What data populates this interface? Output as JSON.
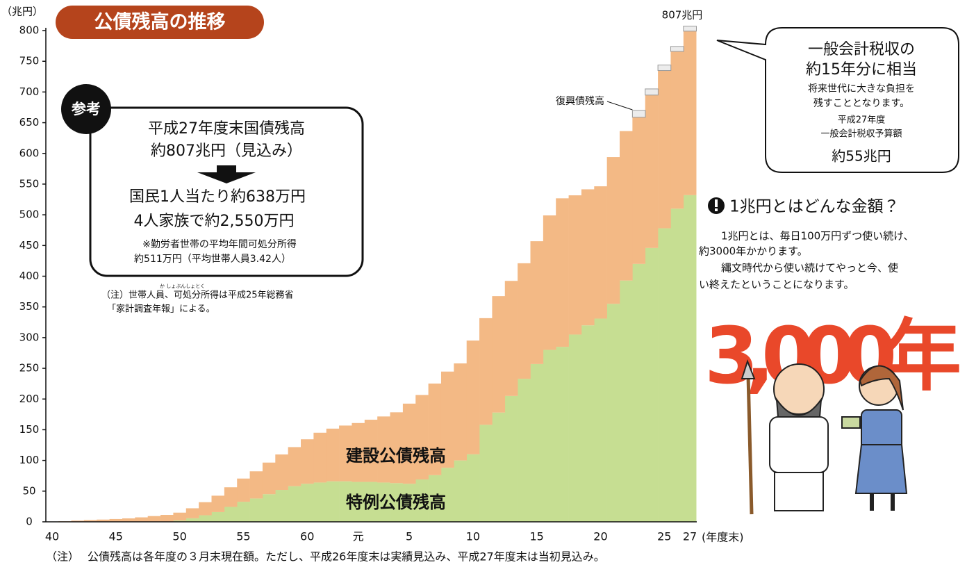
{
  "chart_data": {
    "type": "bar",
    "stacked": true,
    "title": "公債残高の推移",
    "ylabel": "（兆円）",
    "xlabel": "(年度末)",
    "categories": [
      "40",
      null,
      null,
      null,
      null,
      "45",
      null,
      null,
      null,
      null,
      "50",
      null,
      null,
      null,
      null,
      "55",
      null,
      null,
      null,
      null,
      "60",
      null,
      null,
      null,
      "元",
      null,
      null,
      null,
      "5",
      null,
      null,
      null,
      null,
      "10",
      null,
      null,
      null,
      null,
      "15",
      null,
      null,
      null,
      null,
      "20",
      null,
      null,
      null,
      null,
      "25",
      null,
      "27"
    ],
    "series": [
      {
        "name": "特例公債残高",
        "color": "#c6de92",
        "values": [
          0.2,
          0.2,
          0.2,
          0.2,
          0.2,
          0.2,
          0.2,
          0.2,
          0.2,
          0.2,
          2.1,
          5.8,
          10.7,
          15.9,
          24.3,
          32.7,
          38,
          45,
          52,
          58,
          62,
          64,
          66,
          66,
          65,
          65,
          64,
          63,
          62,
          69,
          76,
          88,
          100,
          110,
          158,
          178,
          205,
          233,
          257,
          280,
          285,
          305,
          320,
          331,
          355,
          393,
          420,
          446,
          478,
          510,
          532
        ]
      },
      {
        "name": "建設公債残高",
        "color": "#f3b985",
        "values": [
          0,
          0.7,
          1.8,
          2.7,
          3.5,
          4.4,
          5.4,
          7.1,
          9.2,
          11.1,
          12.9,
          16.3,
          21.3,
          26.7,
          32,
          37.8,
          44.3,
          51.5,
          57.7,
          63.7,
          72.4,
          81.1,
          85.8,
          90.8,
          95.9,
          101.3,
          107.6,
          115.4,
          130.5,
          137.6,
          149.2,
          156.7,
          158,
          185.2,
          173.7,
          189.6,
          187.4,
          188.1,
          200,
          219,
          241.9,
          226.7,
          221.5,
          215.4,
          239,
          243.3,
          238.9,
          249,
          256.9,
          256.1,
          267.1
        ]
      },
      {
        "name": "復興債残高",
        "color": "#ececec",
        "values": [
          null,
          null,
          null,
          null,
          null,
          null,
          null,
          null,
          null,
          null,
          null,
          null,
          null,
          null,
          null,
          null,
          null,
          null,
          null,
          null,
          null,
          null,
          null,
          null,
          null,
          null,
          null,
          null,
          null,
          null,
          null,
          null,
          null,
          null,
          null,
          null,
          null,
          null,
          null,
          null,
          null,
          null,
          null,
          null,
          null,
          null,
          11,
          10,
          9,
          8,
          8
        ]
      }
    ],
    "ylim": [
      0,
      800
    ],
    "yticks": [
      0,
      50,
      100,
      150,
      200,
      250,
      300,
      350,
      400,
      450,
      500,
      550,
      600,
      650,
      700,
      750,
      800
    ],
    "grid": false,
    "annotations": [
      "807兆円"
    ]
  },
  "reference": {
    "badge": "参考",
    "lines": [
      "平成27年度末国債残高",
      "約807兆円（見込み）",
      "国民1人当たり約638万円",
      "4人家族で約2,550万円",
      "※勤労者世帯の平均年間可処分所得",
      "約511万円（平均世帯人員3.42人）"
    ],
    "note_ruby": "か しょぶんしょとく",
    "note": [
      "（注）世帯人員、可処分所得は平成25年総務省",
      "「家計調査年報」による。"
    ]
  },
  "callout": [
    "一般会計税収の",
    "約15年分に相当",
    "将来世代に大きな負担を",
    "残すこととなります。",
    "平成27年度",
    "一般会計税収予算額",
    "約55兆円"
  ],
  "info": {
    "heading": "1兆円とはどんな金額？",
    "lines": [
      "1兆円とは、毎日100万円ずつ使い続け、",
      "約3000年かかります。",
      "縄文時代から使い続けてやっと今、使",
      "い終えたということになります。"
    ],
    "big": "3,000年"
  },
  "footnote": {
    "mark": "（注）",
    "text": "公債残高は各年度の３月末現在額。ただし、平成26年度末は実績見込み、平成27年度末は当初見込み。"
  }
}
